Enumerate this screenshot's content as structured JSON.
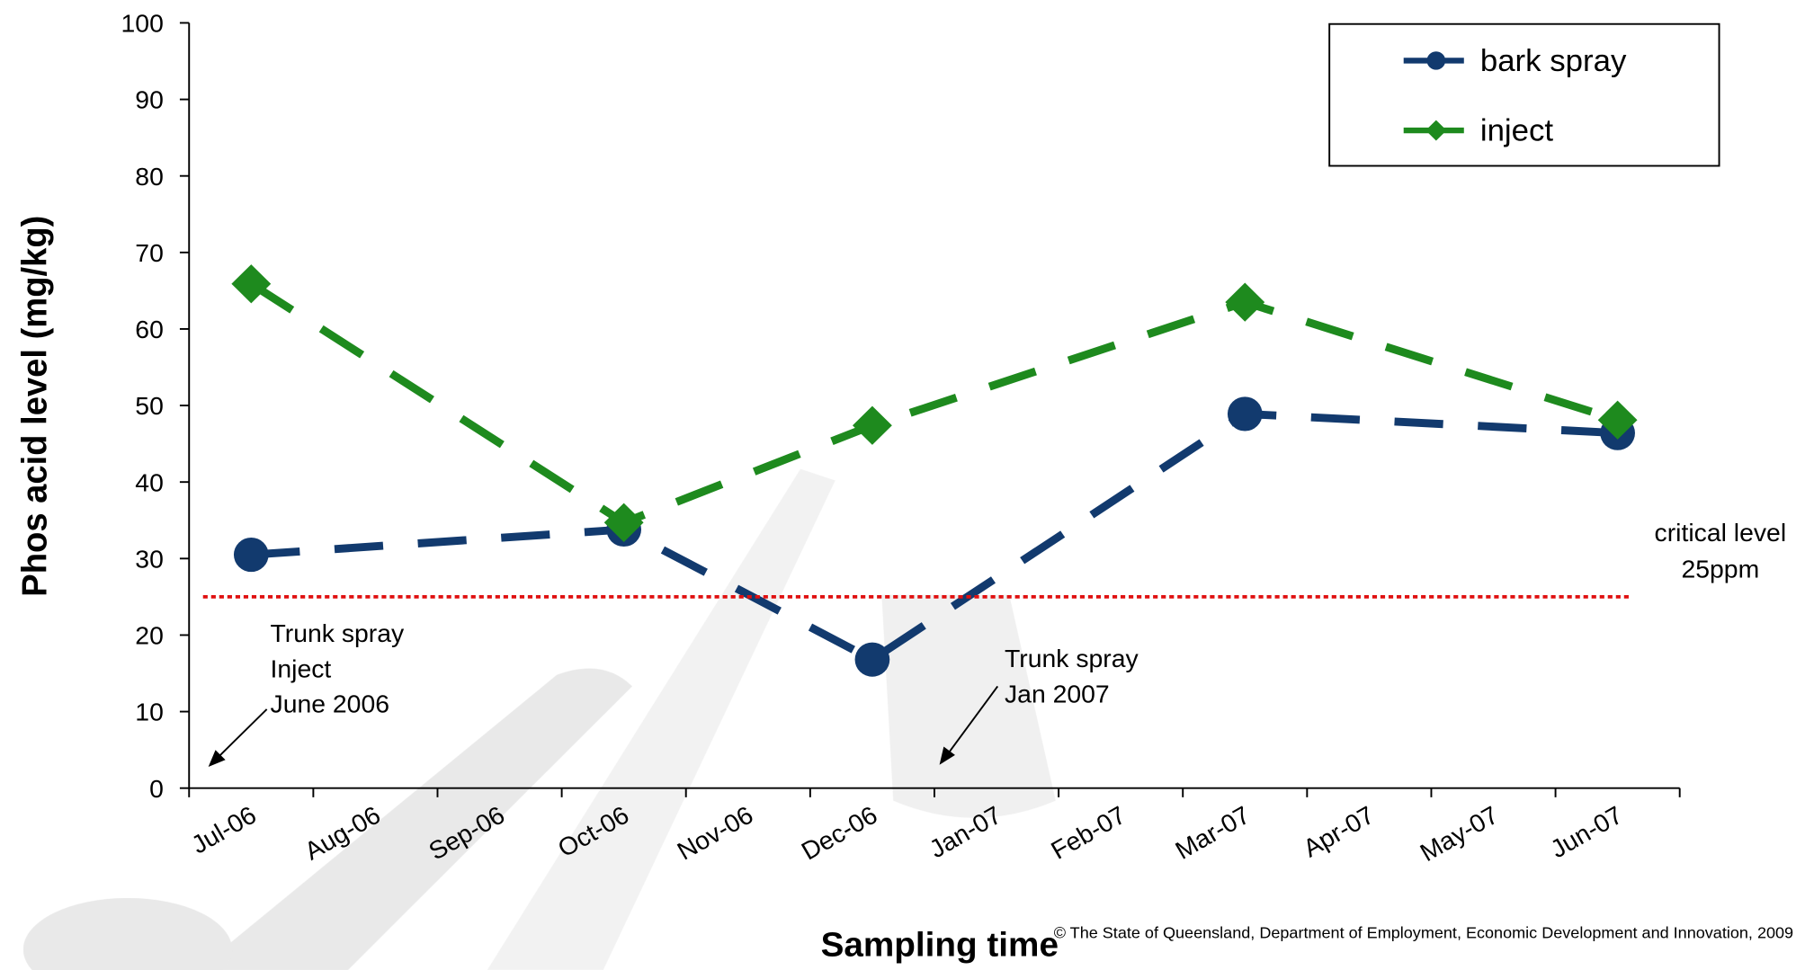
{
  "chart_data": {
    "type": "line",
    "x_label": "Sampling time",
    "y_label": "Phos acid level (mg/kg)",
    "categories": [
      "Jul-06",
      "Aug-06",
      "Sep-06",
      "Oct-06",
      "Nov-06",
      "Dec-06",
      "Jan-07",
      "Feb-07",
      "Mar-07",
      "Apr-07",
      "May-07",
      "Jun-07"
    ],
    "x": [
      "Jul-06",
      "Oct-06",
      "Dec-06",
      "Mar-07",
      "Jun-07"
    ],
    "series": [
      {
        "name": "bark spray",
        "color": "#123a6e",
        "marker": "circle",
        "values": [
          30.5,
          33.8,
          16.8,
          48.9,
          46.4
        ]
      },
      {
        "name": "inject",
        "color": "#1e8a1e",
        "marker": "diamond",
        "values": [
          65.9,
          34.7,
          47.4,
          63.5,
          48.1
        ]
      }
    ],
    "ylim": [
      0,
      100
    ],
    "yticks": [
      0,
      10,
      20,
      30,
      40,
      50,
      60,
      70,
      80,
      90,
      100
    ],
    "reference_line": {
      "value": 25,
      "color": "#e01010",
      "label": [
        "critical level",
        "25ppm"
      ]
    },
    "annotations": [
      {
        "lines": [
          "Trunk spray",
          "Inject",
          "June 2006"
        ]
      },
      {
        "lines": [
          "Trunk spray",
          "Jan 2007"
        ]
      }
    ],
    "legend": "top-right",
    "footnote": "© The State of Queensland, Department of Employment, Economic Development and Innovation, 2009"
  }
}
